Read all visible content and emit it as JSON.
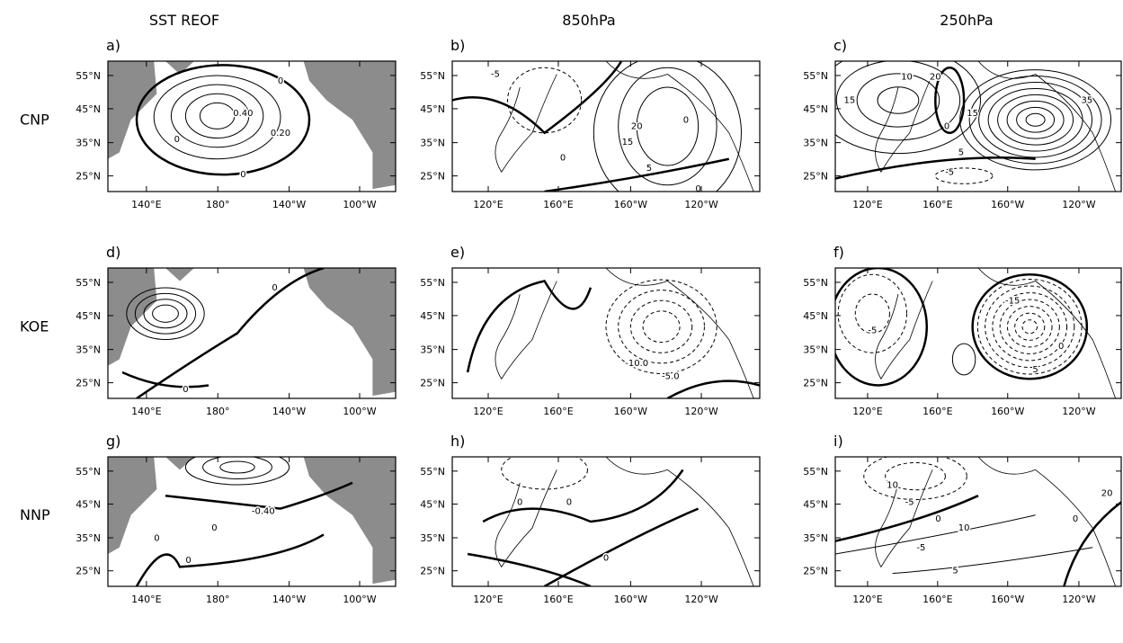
{
  "columns": [
    "SST REOF",
    "850hPa",
    "250hPa"
  ],
  "rows": [
    "CNP",
    "KOE",
    "NNP"
  ],
  "lat_ticks": [
    "55°N",
    "45°N",
    "35°N",
    "25°N"
  ],
  "lon_ticks": {
    "sst": [
      "140°E",
      "180°",
      "140°W",
      "100°W"
    ],
    "atm": [
      "120°E",
      "160°E",
      "160°W",
      "120°W"
    ]
  },
  "panels": [
    {
      "label": "a)",
      "contour_labels": [
        "0.40",
        "0.20",
        "0",
        "0",
        "0"
      ]
    },
    {
      "label": "b)",
      "contour_labels": [
        "-5",
        "0",
        "20",
        "15",
        "5",
        "0",
        "0"
      ]
    },
    {
      "label": "c)",
      "contour_labels": [
        "10",
        "20",
        "15",
        "15",
        "0",
        "5",
        "-5",
        "35"
      ]
    },
    {
      "label": "d)",
      "contour_labels": [
        "0",
        "0"
      ]
    },
    {
      "label": "e)",
      "contour_labels": [
        "-10.0",
        "-5.0"
      ]
    },
    {
      "label": "f)",
      "contour_labels": [
        "-5",
        "-15",
        "5",
        "0"
      ]
    },
    {
      "label": "g)",
      "contour_labels": [
        "-0.40",
        "0",
        "0",
        "0"
      ]
    },
    {
      "label": "h)",
      "contour_labels": [
        "0",
        "0",
        "0"
      ]
    },
    {
      "label": "i)",
      "contour_labels": [
        "10",
        "-5",
        "0",
        "10",
        "-5",
        "20",
        "0",
        "5"
      ]
    }
  ]
}
